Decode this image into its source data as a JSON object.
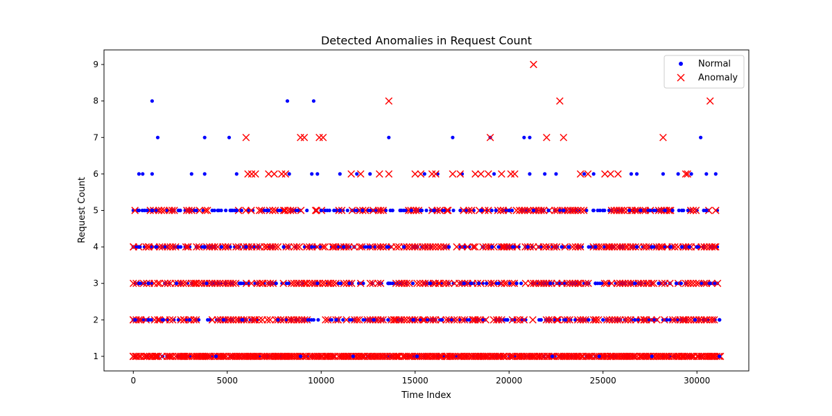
{
  "chart_data": {
    "type": "scatter",
    "title": "Detected Anomalies in Request Count",
    "xlabel": "Time Index",
    "ylabel": "Request Count",
    "xlim": [
      -1560,
      32760
    ],
    "ylim": [
      0.6,
      9.4
    ],
    "xticks": [
      0,
      5000,
      10000,
      15000,
      20000,
      25000,
      30000
    ],
    "xtick_labels": [
      "0",
      "5000",
      "10000",
      "15000",
      "20000",
      "25000",
      "30000"
    ],
    "yticks": [
      1,
      2,
      3,
      4,
      5,
      6,
      7,
      8,
      9
    ],
    "ytick_labels": [
      "1",
      "2",
      "3",
      "4",
      "5",
      "6",
      "7",
      "8",
      "9"
    ],
    "grid": false,
    "legend_position": "top-right",
    "colors": {
      "normal": "#0000ff",
      "anomaly": "#ff0000"
    },
    "series": [
      {
        "name": "Normal",
        "marker": "dot",
        "points": [
          [
            1000,
            8
          ],
          [
            1300,
            7
          ],
          [
            3800,
            7
          ],
          [
            5100,
            7
          ],
          [
            8200,
            8
          ],
          [
            9600,
            8
          ],
          [
            13600,
            7
          ],
          [
            17000,
            7
          ],
          [
            19000,
            7
          ],
          [
            20800,
            7
          ],
          [
            21100,
            7
          ],
          [
            30200,
            7
          ],
          [
            300,
            6
          ],
          [
            500,
            6
          ],
          [
            1000,
            6
          ],
          [
            3100,
            6
          ],
          [
            3800,
            6
          ],
          [
            5500,
            6
          ],
          [
            8300,
            6
          ],
          [
            9500,
            6
          ],
          [
            9800,
            6
          ],
          [
            11000,
            6
          ],
          [
            11900,
            6
          ],
          [
            12600,
            6
          ],
          [
            15500,
            6
          ],
          [
            16200,
            6
          ],
          [
            17500,
            6
          ],
          [
            19200,
            6
          ],
          [
            21100,
            6
          ],
          [
            21900,
            6
          ],
          [
            22500,
            6
          ],
          [
            24000,
            6
          ],
          [
            24500,
            6
          ],
          [
            26500,
            6
          ],
          [
            26800,
            6
          ],
          [
            28200,
            6
          ],
          [
            29000,
            6
          ],
          [
            29700,
            6
          ],
          [
            30500,
            6
          ],
          [
            31000,
            6
          ],
          [
            300,
            5
          ],
          [
            1000,
            5
          ],
          [
            2500,
            5
          ],
          [
            4500,
            5
          ],
          [
            5200,
            5
          ],
          [
            5500,
            5
          ],
          [
            7200,
            5
          ],
          [
            10000,
            5
          ],
          [
            11000,
            5
          ],
          [
            12200,
            5
          ],
          [
            13800,
            5
          ],
          [
            14200,
            5
          ],
          [
            14800,
            5
          ],
          [
            15300,
            5
          ],
          [
            16000,
            5
          ],
          [
            18500,
            5
          ],
          [
            19300,
            5
          ],
          [
            20000,
            5
          ],
          [
            21300,
            5
          ],
          [
            22100,
            5
          ],
          [
            22900,
            5
          ],
          [
            24500,
            5
          ],
          [
            25000,
            5
          ],
          [
            26400,
            5
          ],
          [
            27000,
            5
          ],
          [
            27500,
            5
          ],
          [
            28300,
            5
          ],
          [
            28700,
            5
          ],
          [
            29200,
            5
          ],
          [
            30500,
            5
          ],
          [
            300,
            4
          ],
          [
            1200,
            4
          ],
          [
            2400,
            4
          ],
          [
            3800,
            4
          ],
          [
            4700,
            4
          ],
          [
            6000,
            4
          ],
          [
            8000,
            4
          ],
          [
            9500,
            4
          ],
          [
            11200,
            4
          ],
          [
            12600,
            4
          ],
          [
            13500,
            4
          ],
          [
            14400,
            4
          ],
          [
            16800,
            4
          ],
          [
            19100,
            4
          ],
          [
            20200,
            4
          ],
          [
            21000,
            4
          ],
          [
            23200,
            4
          ],
          [
            24600,
            4
          ],
          [
            26800,
            4
          ],
          [
            27600,
            4
          ],
          [
            28600,
            4
          ],
          [
            29200,
            4
          ],
          [
            29600,
            4
          ],
          [
            30000,
            4
          ],
          [
            300,
            3
          ],
          [
            800,
            3
          ],
          [
            2300,
            3
          ],
          [
            3900,
            3
          ],
          [
            5700,
            3
          ],
          [
            7600,
            3
          ],
          [
            9800,
            3
          ],
          [
            11500,
            3
          ],
          [
            13600,
            3
          ],
          [
            15800,
            3
          ],
          [
            17600,
            3
          ],
          [
            18000,
            3
          ],
          [
            18400,
            3
          ],
          [
            18800,
            3
          ],
          [
            20400,
            3
          ],
          [
            22200,
            3
          ],
          [
            24600,
            3
          ],
          [
            26700,
            3
          ],
          [
            28900,
            3
          ],
          [
            30700,
            3
          ],
          [
            100,
            2
          ],
          [
            800,
            2
          ],
          [
            1600,
            2
          ],
          [
            3000,
            2
          ],
          [
            4800,
            2
          ],
          [
            5800,
            2
          ],
          [
            7700,
            2
          ],
          [
            9300,
            2
          ],
          [
            10800,
            2
          ],
          [
            12800,
            2
          ],
          [
            14900,
            2
          ],
          [
            16400,
            2
          ],
          [
            19900,
            2
          ],
          [
            21700,
            2
          ],
          [
            23000,
            2
          ],
          [
            25000,
            2
          ],
          [
            26700,
            2
          ],
          [
            28400,
            2
          ],
          [
            29900,
            2
          ],
          [
            31200,
            2
          ],
          [
            4400,
            1
          ],
          [
            8900,
            1
          ],
          [
            11700,
            1
          ],
          [
            15100,
            1
          ],
          [
            22300,
            1
          ],
          [
            24800,
            1
          ],
          [
            27600,
            1
          ],
          [
            31200,
            1
          ]
        ]
      },
      {
        "name": "Anomaly",
        "marker": "x",
        "points": [
          [
            21300,
            9
          ],
          [
            13600,
            8
          ],
          [
            22700,
            8
          ],
          [
            30700,
            8
          ],
          [
            6000,
            7
          ],
          [
            8900,
            7
          ],
          [
            9100,
            7
          ],
          [
            9900,
            7
          ],
          [
            10100,
            7
          ],
          [
            19000,
            7
          ],
          [
            22000,
            7
          ],
          [
            22900,
            7
          ],
          [
            28200,
            7
          ],
          [
            6100,
            6
          ],
          [
            6300,
            6
          ],
          [
            6500,
            6
          ],
          [
            7200,
            6
          ],
          [
            7500,
            6
          ],
          [
            7900,
            6
          ],
          [
            8100,
            6
          ],
          [
            11600,
            6
          ],
          [
            12100,
            6
          ],
          [
            13100,
            6
          ],
          [
            13600,
            6
          ],
          [
            15000,
            6
          ],
          [
            15300,
            6
          ],
          [
            15900,
            6
          ],
          [
            16100,
            6
          ],
          [
            17000,
            6
          ],
          [
            17400,
            6
          ],
          [
            18200,
            6
          ],
          [
            18500,
            6
          ],
          [
            18900,
            6
          ],
          [
            19600,
            6
          ],
          [
            20100,
            6
          ],
          [
            20300,
            6
          ],
          [
            23800,
            6
          ],
          [
            24200,
            6
          ],
          [
            25100,
            6
          ],
          [
            25400,
            6
          ],
          [
            25800,
            6
          ],
          [
            29400,
            6
          ],
          [
            0,
            4
          ],
          [
            29500,
            6
          ],
          [
            900,
            5
          ],
          [
            5600,
            5
          ],
          [
            8000,
            5
          ],
          [
            9700,
            5
          ],
          [
            13300,
            5
          ],
          [
            16700,
            5
          ],
          [
            18900,
            5
          ],
          [
            21000,
            5
          ],
          [
            23500,
            5
          ],
          [
            26500,
            5
          ],
          [
            28600,
            5
          ],
          [
            31000,
            5
          ],
          [
            800,
            4
          ],
          [
            2900,
            4
          ],
          [
            4900,
            4
          ],
          [
            7100,
            4
          ],
          [
            10600,
            4
          ],
          [
            13300,
            4
          ],
          [
            15400,
            4
          ],
          [
            18100,
            4
          ],
          [
            19700,
            4
          ],
          [
            22400,
            4
          ],
          [
            25300,
            4
          ],
          [
            26300,
            4
          ],
          [
            28100,
            4
          ],
          [
            31000,
            4
          ],
          [
            0,
            3
          ],
          [
            1300,
            3
          ],
          [
            3300,
            3
          ],
          [
            6900,
            3
          ],
          [
            9200,
            3
          ],
          [
            10400,
            3
          ],
          [
            12100,
            3
          ],
          [
            14300,
            3
          ],
          [
            16300,
            3
          ],
          [
            19600,
            3
          ],
          [
            21600,
            3
          ],
          [
            23700,
            3
          ],
          [
            25900,
            3
          ],
          [
            27700,
            3
          ],
          [
            29800,
            3
          ],
          [
            31100,
            3
          ],
          [
            0,
            2
          ],
          [
            1300,
            2
          ],
          [
            2700,
            2
          ],
          [
            4200,
            2
          ],
          [
            6500,
            2
          ],
          [
            8400,
            2
          ],
          [
            10900,
            2
          ],
          [
            13900,
            2
          ],
          [
            15500,
            2
          ],
          [
            18100,
            2
          ],
          [
            20800,
            2
          ],
          [
            22600,
            2
          ],
          [
            24600,
            2
          ],
          [
            27200,
            2
          ],
          [
            29300,
            2
          ],
          [
            30700,
            2
          ],
          [
            0,
            1
          ],
          [
            1200,
            1
          ],
          [
            2700,
            1
          ],
          [
            4000,
            1
          ],
          [
            6400,
            1
          ],
          [
            7700,
            1
          ],
          [
            10200,
            1
          ],
          [
            12300,
            1
          ],
          [
            14000,
            1
          ],
          [
            16700,
            1
          ],
          [
            18800,
            1
          ],
          [
            20600,
            1
          ],
          [
            23000,
            1
          ],
          [
            25400,
            1
          ],
          [
            27000,
            1
          ],
          [
            29000,
            1
          ],
          [
            30800,
            1
          ]
        ],
        "dense_ranges": [
          {
            "y": 5,
            "ranges": [
              [
                100,
                2200
              ],
              [
                2700,
                4100
              ],
              [
                6000,
                7600
              ],
              [
                7800,
                10700
              ],
              [
                10800,
                13400
              ],
              [
                14500,
                18800
              ],
              [
                19000,
                21200
              ],
              [
                21300,
                24000
              ],
              [
                25300,
                28600
              ],
              [
                29400,
                30200
              ],
              [
                30500,
                31200
              ]
            ]
          },
          {
            "y": 4,
            "ranges": [
              [
                0,
                31200
              ]
            ]
          },
          {
            "y": 3,
            "ranges": [
              [
                0,
                31200
              ]
            ]
          },
          {
            "y": 2,
            "ranges": [
              [
                0,
                31200
              ]
            ]
          },
          {
            "y": 1,
            "ranges": [
              [
                0,
                31300
              ]
            ]
          }
        ]
      }
    ]
  }
}
